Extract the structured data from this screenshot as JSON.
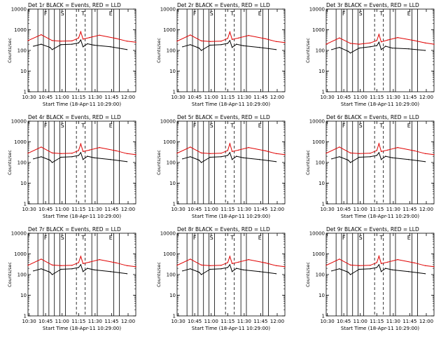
{
  "figure": {
    "ylabel": "Counts/sec",
    "xlabel": "Start Time (18-Apr-11 10:29:00)",
    "y_ticks": [
      "1",
      "10",
      "100",
      "1000",
      "10000"
    ],
    "x_ticks": [
      "10:30",
      "10:45",
      "11:00",
      "11:15",
      "11:30",
      "11:45",
      "12:00"
    ],
    "markers": [
      "F",
      "S",
      "T",
      "E"
    ],
    "colors": {
      "events": "#000000",
      "lld": "#e00000",
      "axes": "#000000"
    }
  },
  "chart_data": [
    {
      "type": "line",
      "title": "Det 1r BLACK = Events, RED = LLD",
      "xlabel": "Start Time (18-Apr-11 10:29:00)",
      "ylabel": "Counts/sec",
      "xlim": [
        0,
        98
      ],
      "ylim": [
        1,
        10000
      ],
      "yscale": "log",
      "series": [
        {
          "name": "Events",
          "color": "#000000",
          "x": [
            5,
            12,
            20,
            22,
            30,
            40,
            46,
            48,
            50,
            54,
            60,
            75,
            90
          ],
          "y": [
            160,
            200,
            140,
            110,
            190,
            200,
            230,
            320,
            150,
            210,
            180,
            150,
            110
          ]
        },
        {
          "name": "LLD",
          "color": "#e00000",
          "x": [
            0,
            12,
            22,
            30,
            40,
            46,
            48,
            50,
            56,
            65,
            80,
            90,
            98
          ],
          "y": [
            300,
            580,
            300,
            280,
            290,
            400,
            800,
            350,
            420,
            550,
            380,
            280,
            250
          ]
        }
      ]
    },
    {
      "type": "line",
      "title": "Det 2r BLACK = Events, RED = LLD",
      "xlabel": "Start Time (18-Apr-11 10:29:00)",
      "ylabel": "Counts/sec",
      "xlim": [
        0,
        98
      ],
      "ylim": [
        1,
        10000
      ],
      "yscale": "log",
      "series": [
        {
          "name": "Events",
          "color": "#000000",
          "x": [
            5,
            12,
            20,
            22,
            30,
            40,
            46,
            48,
            50,
            54,
            60,
            75,
            90
          ],
          "y": [
            150,
            190,
            130,
            100,
            180,
            190,
            220,
            300,
            140,
            200,
            170,
            140,
            110
          ]
        },
        {
          "name": "LLD",
          "color": "#e00000",
          "x": [
            0,
            12,
            22,
            30,
            40,
            46,
            48,
            50,
            56,
            65,
            80,
            90,
            98
          ],
          "y": [
            280,
            560,
            290,
            270,
            280,
            380,
            780,
            340,
            400,
            530,
            370,
            270,
            240
          ]
        }
      ]
    },
    {
      "type": "line",
      "title": "Det 3r BLACK = Events, RED = LLD",
      "xlabel": "Start Time (18-Apr-11 10:29:00)",
      "ylabel": "Counts/sec",
      "xlim": [
        0,
        98
      ],
      "ylim": [
        1,
        10000
      ],
      "yscale": "log",
      "series": [
        {
          "name": "Events",
          "color": "#000000",
          "x": [
            5,
            12,
            20,
            22,
            30,
            40,
            46,
            48,
            50,
            54,
            60,
            75,
            90
          ],
          "y": [
            110,
            140,
            90,
            75,
            130,
            150,
            170,
            250,
            110,
            160,
            130,
            120,
            100
          ]
        },
        {
          "name": "LLD",
          "color": "#e00000",
          "x": [
            0,
            12,
            22,
            30,
            40,
            46,
            48,
            50,
            56,
            65,
            80,
            90,
            98
          ],
          "y": [
            200,
            400,
            220,
            200,
            230,
            300,
            600,
            260,
            320,
            420,
            300,
            230,
            200
          ]
        }
      ]
    },
    {
      "type": "line",
      "title": "Det 4r BLACK = Events, RED = LLD",
      "xlabel": "Start Time (18-Apr-11 10:29:00)",
      "ylabel": "Counts/sec",
      "xlim": [
        0,
        98
      ],
      "ylim": [
        1,
        10000
      ],
      "yscale": "log",
      "series": [
        {
          "name": "Events",
          "color": "#000000",
          "x": [
            5,
            12,
            20,
            22,
            30,
            40,
            46,
            48,
            50,
            54,
            60,
            75,
            90
          ],
          "y": [
            150,
            190,
            130,
            100,
            180,
            190,
            220,
            300,
            140,
            200,
            170,
            140,
            110
          ]
        },
        {
          "name": "LLD",
          "color": "#e00000",
          "x": [
            0,
            12,
            22,
            30,
            40,
            46,
            48,
            50,
            56,
            65,
            80,
            90,
            98
          ],
          "y": [
            280,
            560,
            290,
            270,
            280,
            380,
            800,
            340,
            400,
            530,
            370,
            270,
            240
          ]
        }
      ]
    },
    {
      "type": "line",
      "title": "Det 5r BLACK = Events, RED = LLD",
      "xlabel": "Start Time (18-Apr-11 10:29:00)",
      "ylabel": "Counts/sec",
      "xlim": [
        0,
        98
      ],
      "ylim": [
        1,
        10000
      ],
      "yscale": "log",
      "series": [
        {
          "name": "Events",
          "color": "#000000",
          "x": [
            5,
            12,
            20,
            22,
            30,
            40,
            46,
            48,
            50,
            54,
            60,
            75,
            90
          ],
          "y": [
            150,
            190,
            130,
            100,
            180,
            190,
            220,
            300,
            140,
            200,
            170,
            140,
            110
          ]
        },
        {
          "name": "LLD",
          "color": "#e00000",
          "x": [
            0,
            12,
            22,
            30,
            40,
            46,
            48,
            50,
            56,
            65,
            80,
            90,
            98
          ],
          "y": [
            280,
            560,
            290,
            270,
            280,
            380,
            820,
            340,
            400,
            530,
            370,
            270,
            240
          ]
        }
      ]
    },
    {
      "type": "line",
      "title": "Det 6r BLACK = Events, RED = LLD",
      "xlabel": "Start Time (18-Apr-11 10:29:00)",
      "ylabel": "Counts/sec",
      "xlim": [
        0,
        98
      ],
      "ylim": [
        1,
        10000
      ],
      "yscale": "log",
      "series": [
        {
          "name": "Events",
          "color": "#000000",
          "x": [
            5,
            12,
            20,
            22,
            30,
            40,
            46,
            48,
            50,
            54,
            60,
            75,
            90
          ],
          "y": [
            150,
            190,
            130,
            100,
            180,
            190,
            220,
            300,
            140,
            200,
            170,
            140,
            110
          ]
        },
        {
          "name": "LLD",
          "color": "#e00000",
          "x": [
            0,
            12,
            22,
            30,
            40,
            46,
            48,
            50,
            56,
            65,
            80,
            90,
            98
          ],
          "y": [
            280,
            560,
            290,
            270,
            280,
            380,
            820,
            340,
            400,
            530,
            370,
            270,
            240
          ]
        }
      ]
    },
    {
      "type": "line",
      "title": "Det 7r BLACK = Events, RED = LLD",
      "xlabel": "Start Time (18-Apr-11 10:29:00)",
      "ylabel": "Counts/sec",
      "xlim": [
        0,
        98
      ],
      "ylim": [
        1,
        10000
      ],
      "yscale": "log",
      "series": [
        {
          "name": "Events",
          "color": "#000000",
          "x": [
            5,
            12,
            20,
            22,
            30,
            40,
            46,
            48,
            50,
            54,
            60,
            75,
            90
          ],
          "y": [
            150,
            190,
            130,
            100,
            180,
            190,
            220,
            300,
            140,
            200,
            170,
            140,
            110
          ]
        },
        {
          "name": "LLD",
          "color": "#e00000",
          "x": [
            0,
            12,
            22,
            30,
            40,
            46,
            48,
            50,
            56,
            65,
            80,
            90,
            98
          ],
          "y": [
            280,
            560,
            290,
            270,
            280,
            380,
            760,
            340,
            400,
            530,
            370,
            270,
            240
          ]
        }
      ]
    },
    {
      "type": "line",
      "title": "Det 8r BLACK = Events, RED = LLD",
      "xlabel": "Start Time (18-Apr-11 10:29:00)",
      "ylabel": "Counts/sec",
      "xlim": [
        0,
        98
      ],
      "ylim": [
        1,
        10000
      ],
      "yscale": "log",
      "series": [
        {
          "name": "Events",
          "color": "#000000",
          "x": [
            5,
            12,
            20,
            22,
            30,
            40,
            46,
            48,
            50,
            54,
            60,
            75,
            90
          ],
          "y": [
            150,
            190,
            130,
            100,
            180,
            190,
            220,
            300,
            140,
            200,
            170,
            140,
            110
          ]
        },
        {
          "name": "LLD",
          "color": "#e00000",
          "x": [
            0,
            12,
            22,
            30,
            40,
            46,
            48,
            50,
            56,
            65,
            80,
            90,
            98
          ],
          "y": [
            280,
            560,
            290,
            270,
            280,
            380,
            760,
            340,
            400,
            530,
            370,
            270,
            240
          ]
        }
      ]
    },
    {
      "type": "line",
      "title": "Det 9r BLACK = Events, RED = LLD",
      "xlabel": "Start Time (18-Apr-11 10:29:00)",
      "ylabel": "Counts/sec",
      "xlim": [
        0,
        98
      ],
      "ylim": [
        1,
        10000
      ],
      "yscale": "log",
      "series": [
        {
          "name": "Events",
          "color": "#000000",
          "x": [
            5,
            12,
            20,
            22,
            30,
            40,
            46,
            48,
            50,
            54,
            60,
            75,
            90
          ],
          "y": [
            150,
            190,
            130,
            100,
            180,
            190,
            220,
            300,
            140,
            200,
            170,
            140,
            110
          ]
        },
        {
          "name": "LLD",
          "color": "#e00000",
          "x": [
            0,
            12,
            22,
            30,
            40,
            46,
            48,
            50,
            56,
            65,
            80,
            90,
            98
          ],
          "y": [
            280,
            560,
            290,
            270,
            280,
            380,
            780,
            340,
            400,
            530,
            370,
            270,
            240
          ]
        }
      ]
    }
  ]
}
